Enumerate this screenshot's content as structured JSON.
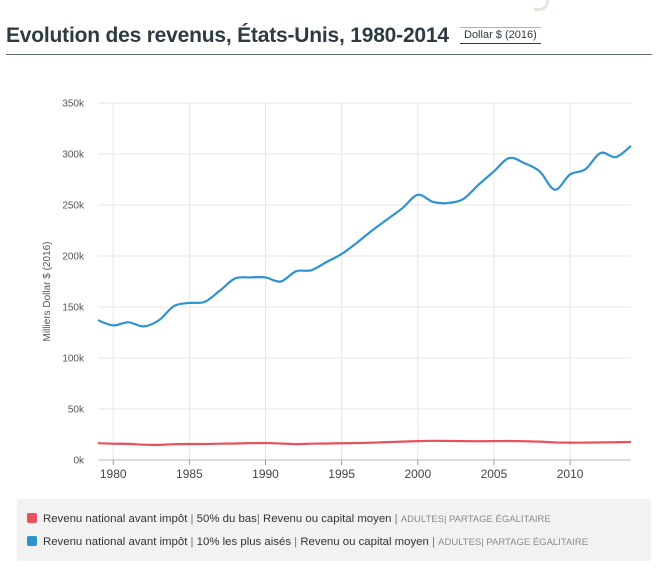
{
  "header": {
    "title": "Evolution des revenus, États-Unis, 1980-2014",
    "unit_selector": "Dollar $ (2016)"
  },
  "colors": {
    "bottom50": "#e8505b",
    "top10": "#2e93cf",
    "grid": "#e6e6e6"
  },
  "legend": {
    "items": [
      {
        "label": "Revenu national avant impôt",
        "group": "50% du bas",
        "measure": "Revenu ou capital moyen",
        "tag1": "ADULTES",
        "tag2": "PARTAGE ÉGALITAIRE",
        "color": "#e8505b"
      },
      {
        "label": "Revenu national avant impôt",
        "group": "10% les plus aisés",
        "measure": "Revenu ou capital moyen",
        "tag1": "ADULTES",
        "tag2": "PARTAGE ÉGALITAIRE",
        "color": "#2e93cf"
      }
    ]
  },
  "chart_data": {
    "type": "line",
    "title": "Evolution des revenus, États-Unis, 1980-2014",
    "xlabel": "",
    "ylabel": "Milliers Dollar $ (2016)",
    "ylim": [
      0,
      350000
    ],
    "xlim": [
      1979,
      2014
    ],
    "x_ticks": [
      1980,
      1985,
      1990,
      1995,
      2000,
      2005,
      2010
    ],
    "y_ticks": [
      {
        "value": 0,
        "label": "0k"
      },
      {
        "value": 50000,
        "label": "50k"
      },
      {
        "value": 100000,
        "label": "100k"
      },
      {
        "value": 150000,
        "label": "150k"
      },
      {
        "value": 200000,
        "label": "200k"
      },
      {
        "value": 250000,
        "label": "250k"
      },
      {
        "value": 300000,
        "label": "300k"
      },
      {
        "value": 350000,
        "label": "350k"
      }
    ],
    "grid": true,
    "legend_position": "bottom",
    "x": [
      1979,
      1980,
      1981,
      1982,
      1983,
      1984,
      1985,
      1986,
      1987,
      1988,
      1989,
      1990,
      1991,
      1992,
      1993,
      1994,
      1995,
      1996,
      1997,
      1998,
      1999,
      2000,
      2001,
      2002,
      2003,
      2004,
      2005,
      2006,
      2007,
      2008,
      2009,
      2010,
      2011,
      2012,
      2013,
      2014
    ],
    "series": [
      {
        "name": "Revenu national avant impôt | 50% du bas | Revenu ou capital moyen | ADULTES | PARTAGE ÉGALITAIRE",
        "color": "#e8505b",
        "values": [
          16500,
          16000,
          15800,
          15000,
          14800,
          15500,
          15700,
          15700,
          16000,
          16200,
          16500,
          16600,
          16200,
          15600,
          16000,
          16200,
          16400,
          16600,
          17000,
          17500,
          18000,
          18500,
          18800,
          18700,
          18500,
          18400,
          18500,
          18600,
          18400,
          18000,
          17200,
          17000,
          17000,
          17200,
          17400,
          17700
        ]
      },
      {
        "name": "Revenu national avant impôt | 10% les plus aisés | Revenu ou capital moyen | ADULTES | PARTAGE ÉGALITAIRE",
        "color": "#2e93cf",
        "values": [
          137000,
          132000,
          135000,
          131000,
          137000,
          151000,
          154000,
          155000,
          166000,
          178000,
          179000,
          179000,
          175000,
          185000,
          186000,
          194000,
          202000,
          213000,
          225000,
          236000,
          247000,
          260000,
          253000,
          252000,
          256000,
          270000,
          283000,
          296000,
          291000,
          283000,
          265000,
          280000,
          285000,
          301000,
          297000,
          308000
        ]
      }
    ]
  }
}
